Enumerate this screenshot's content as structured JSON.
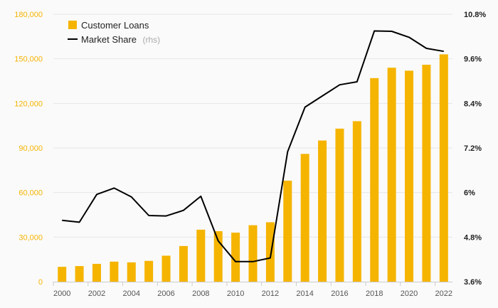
{
  "chart_data": {
    "type": "bar",
    "categories": [
      "2000",
      "2001",
      "2002",
      "2003",
      "2004",
      "2005",
      "2006",
      "2007",
      "2008",
      "2009",
      "2010",
      "2011",
      "2012",
      "2013",
      "2014",
      "2015",
      "2016",
      "2017",
      "2018",
      "2019",
      "2020",
      "2021",
      "2022"
    ],
    "x_tick_labels": [
      "2000",
      "2002",
      "2004",
      "2006",
      "2008",
      "2010",
      "2012",
      "2014",
      "2016",
      "2018",
      "2020",
      "2022"
    ],
    "series": [
      {
        "name": "Customer Loans",
        "type": "bar",
        "axis": "left",
        "color": "#f5b400",
        "values": [
          10000,
          10500,
          12000,
          13500,
          13000,
          14000,
          17500,
          24000,
          35000,
          34000,
          33000,
          38000,
          40000,
          68000,
          86000,
          95000,
          103000,
          108000,
          137000,
          144000,
          142000,
          146000,
          153000
        ]
      },
      {
        "name": "Market Share",
        "legend_suffix": "(rhs)",
        "type": "line",
        "axis": "right",
        "color": "#000000",
        "values": [
          5.25,
          5.2,
          5.95,
          6.12,
          5.88,
          5.38,
          5.37,
          5.52,
          5.9,
          4.7,
          4.14,
          4.14,
          4.24,
          7.1,
          8.3,
          8.6,
          8.9,
          8.98,
          10.35,
          10.34,
          10.18,
          9.88,
          9.8
        ]
      }
    ],
    "y_left": {
      "lim": [
        0,
        180000
      ],
      "ticks": [
        "0",
        "30,000",
        "60,000",
        "90,000",
        "120,000",
        "150,000",
        "180,000"
      ],
      "color": "#f5b400"
    },
    "y_right": {
      "lim": [
        3.6,
        10.8
      ],
      "ticks": [
        "3.6%",
        "4.8%",
        "6%",
        "7.2%",
        "8.4%",
        "9.6%",
        "10.8%"
      ]
    },
    "grid": true,
    "legend": "top-left"
  }
}
